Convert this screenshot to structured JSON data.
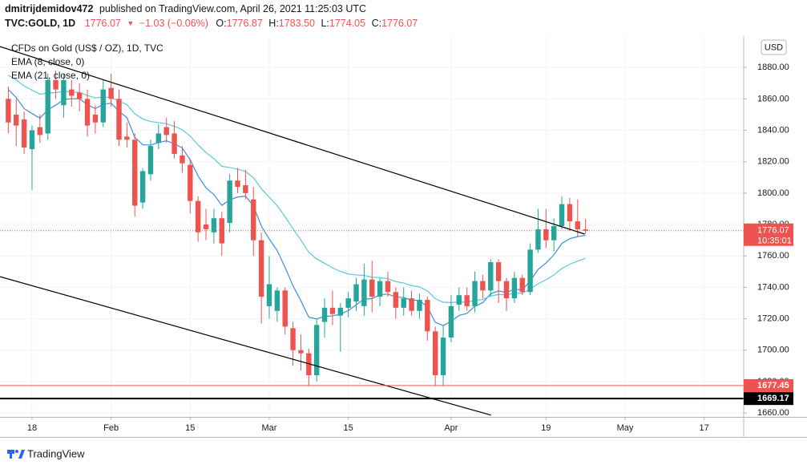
{
  "header": {
    "author": "dmitrijdemidov472",
    "published": "published on TradingView.com, April 26, 2021 11:25:03 UTC",
    "symbol": "TVC:GOLD, 1D",
    "last": "1776.07",
    "arrow": "▼",
    "change": "−1.03 (−0.06%)",
    "open_label": "O:",
    "open": "1776.87",
    "high_label": "H:",
    "high": "1783.50",
    "low_label": "L:",
    "low": "1774.05",
    "close_label": "C:",
    "close": "1776.07"
  },
  "footer": {
    "brand": "TradingView"
  },
  "chart_data": {
    "type": "candlestick",
    "y_axis_label": "USD",
    "grid": true,
    "xlim": [
      -4.05,
      90
    ],
    "ylim": [
      1657.5,
      1900
    ],
    "xticks": [
      {
        "value": 0,
        "label": "18"
      },
      {
        "value": 10,
        "label": "Feb"
      },
      {
        "value": 20,
        "label": "15"
      },
      {
        "value": 30,
        "label": "Mar"
      },
      {
        "value": 40,
        "label": "15"
      },
      {
        "value": 53,
        "label": "Apr"
      },
      {
        "value": 65,
        "label": "19"
      },
      {
        "value": 75,
        "label": "May"
      },
      {
        "value": 85,
        "label": "17"
      }
    ],
    "yticks": [
      {
        "value": 1660,
        "label": "1660.00"
      },
      {
        "value": 1680,
        "label": "1680.00"
      },
      {
        "value": 1700,
        "label": "1700.00"
      },
      {
        "value": 1720,
        "label": "1720.00"
      },
      {
        "value": 1740,
        "label": "1740.00"
      },
      {
        "value": 1760,
        "label": "1760.00"
      },
      {
        "value": 1780,
        "label": "1780.00"
      },
      {
        "value": 1800,
        "label": "1800.00"
      },
      {
        "value": 1820,
        "label": "1820.00"
      },
      {
        "value": 1840,
        "label": "1840.00"
      },
      {
        "value": 1860,
        "label": "1860.00"
      },
      {
        "value": 1880,
        "label": "1880.00"
      }
    ],
    "x": [
      -3,
      -2,
      -1,
      0,
      1,
      2,
      3,
      4,
      5,
      6,
      7,
      8,
      9,
      10,
      11,
      12,
      13,
      14,
      15,
      16,
      17,
      18,
      19,
      20,
      21,
      22,
      23,
      24,
      25,
      26,
      27,
      28,
      29,
      30,
      31,
      32,
      33,
      34,
      35,
      36,
      37,
      38,
      39,
      40,
      41,
      42,
      43,
      44,
      45,
      46,
      47,
      48,
      49,
      50,
      51,
      52,
      53,
      54,
      55,
      56,
      57,
      58,
      59,
      60,
      61,
      62,
      63,
      64,
      65,
      66,
      67,
      68,
      69,
      70
    ],
    "candles": {
      "name": "CFDs on Gold (US$ / OZ), 1D, TVC",
      "up_color": "#26a69a",
      "down_color": "#ef5350",
      "open": [
        1860,
        1850,
        1847,
        1828,
        1842,
        1838,
        1872,
        1856,
        1866,
        1864,
        1860,
        1850,
        1845,
        1867,
        1860,
        1836,
        1834,
        1794,
        1812,
        1832,
        1842,
        1838,
        1824,
        1818,
        1795,
        1780,
        1775,
        1784,
        1781,
        1808,
        1805,
        1796,
        1770,
        1728,
        1725,
        1738,
        1714,
        1700,
        1698,
        1684,
        1718,
        1727,
        1722,
        1727,
        1731,
        1728,
        1745,
        1734,
        1744,
        1737,
        1727,
        1733,
        1725,
        1732,
        1712,
        1684,
        1708,
        1729,
        1735,
        1728,
        1744,
        1738,
        1756,
        1744,
        1733,
        1746,
        1737,
        1764,
        1777,
        1770,
        1779,
        1793,
        1782,
        1776.87
      ],
      "high": [
        1868,
        1860,
        1852,
        1843,
        1850,
        1876,
        1878,
        1876,
        1872,
        1870,
        1866,
        1856,
        1872,
        1876,
        1866,
        1845,
        1838,
        1816,
        1834,
        1844,
        1848,
        1846,
        1830,
        1822,
        1798,
        1790,
        1790,
        1788,
        1812,
        1816,
        1815,
        1804,
        1775,
        1760,
        1740,
        1740,
        1718,
        1710,
        1701,
        1720,
        1733,
        1738,
        1730,
        1737,
        1746,
        1755,
        1757,
        1746,
        1750,
        1740,
        1740,
        1738,
        1736,
        1734,
        1715,
        1716,
        1735,
        1740,
        1740,
        1750,
        1748,
        1758,
        1758,
        1746,
        1750,
        1748,
        1768,
        1790,
        1790,
        1784,
        1798,
        1797,
        1796,
        1783.5
      ],
      "low": [
        1838,
        1830,
        1825,
        1802,
        1832,
        1834,
        1860,
        1848,
        1855,
        1852,
        1836,
        1838,
        1842,
        1855,
        1830,
        1829,
        1785,
        1790,
        1808,
        1828,
        1832,
        1822,
        1813,
        1787,
        1769,
        1770,
        1768,
        1760,
        1775,
        1800,
        1796,
        1760,
        1717,
        1720,
        1718,
        1710,
        1690,
        1687,
        1677,
        1680,
        1708,
        1716,
        1699,
        1721,
        1725,
        1722,
        1724,
        1728,
        1734,
        1720,
        1722,
        1722,
        1720,
        1706,
        1677,
        1677,
        1705,
        1725,
        1725,
        1724,
        1733,
        1734,
        1730,
        1725,
        1730,
        1735,
        1735,
        1762,
        1765,
        1763,
        1777,
        1776,
        1772,
        1774.05
      ],
      "close": [
        1845,
        1843,
        1829,
        1840,
        1837,
        1872,
        1866,
        1872,
        1862,
        1860,
        1843,
        1845,
        1866,
        1860,
        1834,
        1834,
        1792,
        1814,
        1830,
        1838,
        1837,
        1825,
        1819,
        1795,
        1775,
        1777,
        1784,
        1768,
        1808,
        1804,
        1800,
        1770,
        1734,
        1742,
        1738,
        1715,
        1700,
        1698,
        1684,
        1716,
        1727,
        1723,
        1727,
        1733,
        1742,
        1745,
        1734,
        1744,
        1737,
        1727,
        1733,
        1725,
        1732,
        1712,
        1684,
        1708,
        1728,
        1735,
        1728,
        1744,
        1738,
        1756,
        1744,
        1733,
        1746,
        1737,
        1764,
        1777,
        1770,
        1779,
        1793,
        1782,
        1777,
        1776.07
      ]
    },
    "series": [
      {
        "name": "EMA (8, close, 0)",
        "color": "#3d8fd9",
        "values": [
          1866,
          1860.9,
          1853.8,
          1850.7,
          1847.7,
          1853.1,
          1856,
          1859.6,
          1860.1,
          1860.1,
          1856.3,
          1853.8,
          1856.5,
          1857.3,
          1852.1,
          1848.1,
          1835.6,
          1830.8,
          1830.6,
          1832.2,
          1833.3,
          1831.5,
          1828.7,
          1821.2,
          1810.9,
          1803.4,
          1799.1,
          1792.2,
          1795.7,
          1797.5,
          1798.1,
          1791.9,
          1779,
          1770.8,
          1763.5,
          1752.7,
          1741,
          1731.5,
          1721,
          1719.9,
          1721.5,
          1721.8,
          1723,
          1725.2,
          1728.9,
          1732.5,
          1732.8,
          1735.3,
          1735.7,
          1733.8,
          1733.6,
          1731.7,
          1731.8,
          1727.4,
          1717.8,
          1715.6,
          1718.4,
          1722.1,
          1723.4,
          1728,
          1730.2,
          1735.9,
          1737.7,
          1736.7,
          1738.8,
          1738.4,
          1744.1,
          1751.4,
          1755.5,
          1760.7,
          1767.9,
          1771,
          1772.3,
          1773.1
        ]
      },
      {
        "name": "EMA (21, close, 0)",
        "color": "#5cc6de",
        "values": [
          1875,
          1872.1,
          1868.2,
          1865.6,
          1863,
          1863.8,
          1864,
          1864.7,
          1864.5,
          1864.1,
          1862.2,
          1860.6,
          1861.1,
          1861,
          1858.5,
          1856.3,
          1850.5,
          1847.2,
          1845.6,
          1844.9,
          1844.2,
          1842.5,
          1840.4,
          1836.3,
          1830.7,
          1825.8,
          1822,
          1817.1,
          1816.3,
          1815.2,
          1813.8,
          1809.8,
          1802.9,
          1797.4,
          1792,
          1785,
          1777.3,
          1770.1,
          1762.3,
          1758.1,
          1755.3,
          1752.4,
          1750.1,
          1748.5,
          1747.9,
          1747.6,
          1746.4,
          1746.2,
          1745.4,
          1743.7,
          1742.7,
          1741.1,
          1740.3,
          1737.7,
          1732.8,
          1730.5,
          1730.3,
          1730.7,
          1730.5,
          1731.7,
          1732.3,
          1734.5,
          1735.4,
          1735.2,
          1736.2,
          1736.3,
          1738.8,
          1742.3,
          1744.8,
          1747.9,
          1752,
          1754.7,
          1756.7,
          1758.5
        ]
      }
    ],
    "trendlines": [
      {
        "color": "#000000",
        "x": [
          -4.05,
          69.9
        ],
        "y": [
          1893.3,
          1773.9
        ]
      },
      {
        "color": "#000000",
        "x": [
          -4.05,
          58.05
        ],
        "y": [
          1746.8,
          1658.6
        ]
      }
    ],
    "price_lines": [
      {
        "value": 1776.07,
        "countdown": "10:35:01",
        "color": "#ef5350",
        "style": "dotted"
      },
      {
        "value": 1677.45,
        "color": "#ef5350",
        "style": "solid"
      },
      {
        "value": 1669.17,
        "color": "#000000",
        "style": "bold"
      }
    ]
  }
}
